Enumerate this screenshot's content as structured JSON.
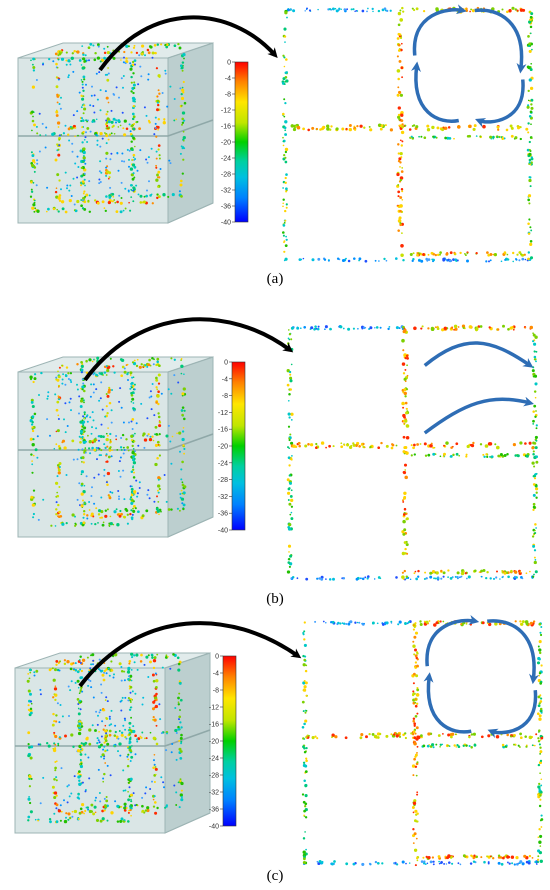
{
  "colorbar": {
    "ticks": [
      "0",
      "-4",
      "-8",
      "-12",
      "-16",
      "-20",
      "-24",
      "-28",
      "-32",
      "-36",
      "-40"
    ],
    "gradient": [
      "#ff0000",
      "#ff8000",
      "#ffe600",
      "#bfe600",
      "#00d000",
      "#00d0a0",
      "#00c0e0",
      "#0080ff",
      "#0000ff"
    ]
  },
  "panels": [
    {
      "label": "(a)",
      "flow": "circulation"
    },
    {
      "label": "(b)",
      "flow": "left-to-right"
    },
    {
      "label": "(c)",
      "flow": "circulation"
    }
  ],
  "colors": {
    "arrow_black": "#000000",
    "arrow_blue": "#2e6db5",
    "cube_face": "#b6cccc",
    "cube_edge": "#8aa3a3"
  }
}
